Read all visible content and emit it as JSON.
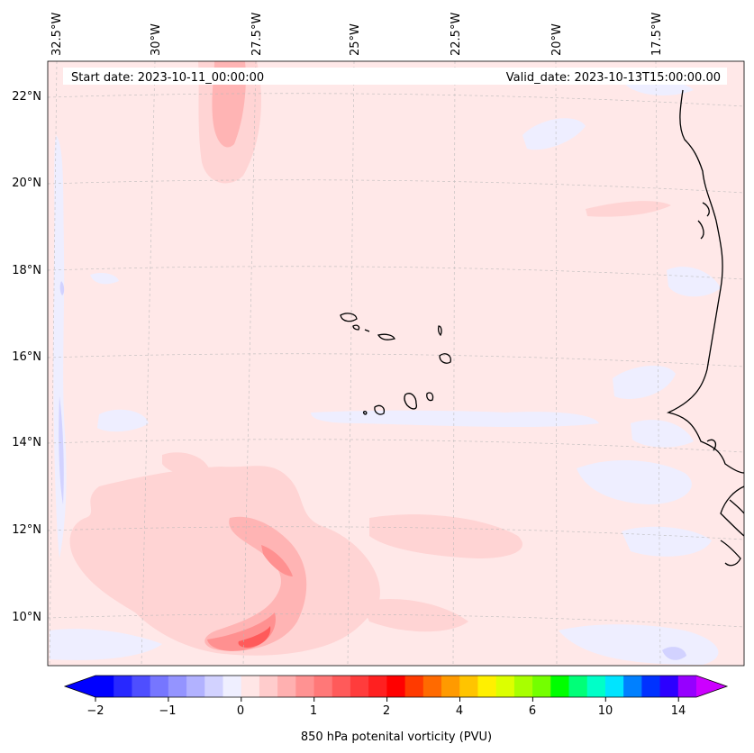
{
  "header": {
    "start_date": "Start date: 2023-10-11_00:00:00",
    "valid_date": "Valid_date: 2023-10-13T15:00:00.00"
  },
  "map": {
    "lon_labels": [
      "32.5°W",
      "30°W",
      "27.5°W",
      "25°W",
      "22.5°W",
      "20°W",
      "17.5°W"
    ],
    "lat_labels": [
      "22°N",
      "20°N",
      "18°N",
      "16°N",
      "14°N",
      "12°N",
      "10°N"
    ],
    "background_color": "#ffe8e8",
    "negative_color": "#eeeeff",
    "positive_colors": [
      "#ffd4d4",
      "#ffb4b4",
      "#ff9090",
      "#ff5a5a"
    ]
  },
  "colorbar": {
    "label": "850 hPa potenital vorticity (PVU)",
    "tick_labels": [
      "−2",
      "−1",
      "0",
      "1",
      "2",
      "4",
      "6",
      "10",
      "14"
    ],
    "colors": [
      "#0000ff",
      "#2828ff",
      "#4e4eff",
      "#7676ff",
      "#9494ff",
      "#b2b2ff",
      "#d2d2ff",
      "#efefff",
      "#ffe6e6",
      "#ffcccc",
      "#ffb0b0",
      "#ff9292",
      "#ff7878",
      "#ff5a5a",
      "#ff3c3c",
      "#ff2020",
      "#ff0000",
      "#ff3a00",
      "#ff6a00",
      "#ff9a00",
      "#ffc400",
      "#fff000",
      "#dcff00",
      "#a8ff00",
      "#74ff00",
      "#00ff00",
      "#00ff78",
      "#00ffc8",
      "#00e4ff",
      "#0080ff",
      "#0032ff",
      "#2c00ff",
      "#9600ff"
    ],
    "left_extend_color": "#0000ff",
    "right_extend_color": "#cc00ff"
  }
}
